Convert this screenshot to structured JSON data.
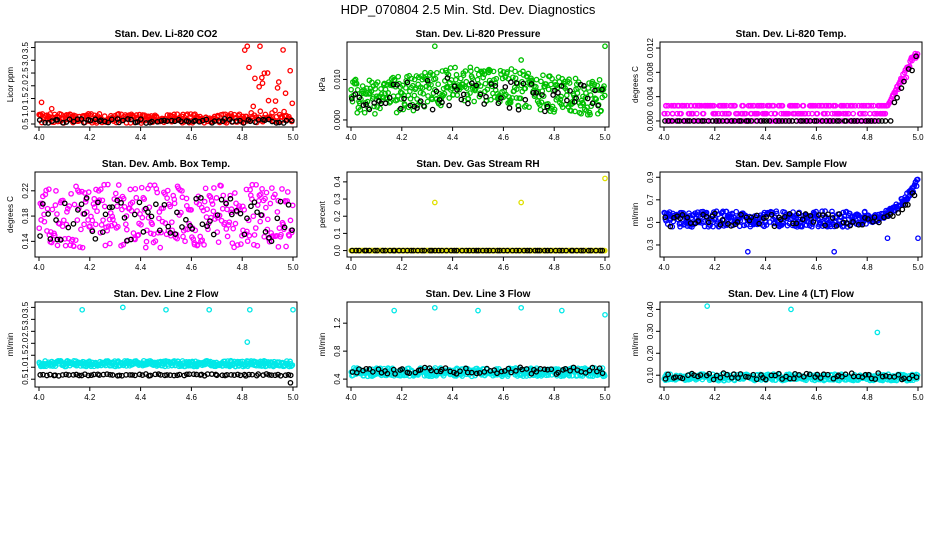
{
  "figure_title": "HDP_070804  2.5 Min. Std. Dev. Diagnostics",
  "chart_data": [
    {
      "type": "scatter",
      "title": "Stan. Dev. Li-820 CO2",
      "ylabel": "Licor ppm",
      "xlim": [
        4.0,
        5.0
      ],
      "ylim": [
        0.5,
        3.6
      ],
      "xticks": [
        "4.0",
        "4.2",
        "4.4",
        "4.6",
        "4.8",
        "5.0"
      ],
      "yticks": [
        "0.5",
        "1.0",
        "1.5",
        "2.0",
        "2.5",
        "3.0",
        "3.5"
      ],
      "series": [
        {
          "name": "red",
          "color": "#ff0000",
          "n": 300,
          "base": 0.72,
          "spread": 0.18,
          "spike_after": 4.8,
          "spike_max": 3.55,
          "outliers": [
            [
              4.01,
              1.35
            ],
            [
              4.05,
              1.1
            ],
            [
              4.81,
              3.4
            ],
            [
              4.82,
              3.55
            ],
            [
              4.87,
              3.55
            ],
            [
              4.9,
              2.5
            ],
            [
              4.88,
              2.1
            ]
          ]
        },
        {
          "name": "black",
          "color": "#000000",
          "n": 70,
          "base": 0.62,
          "spread": 0.08
        }
      ]
    },
    {
      "type": "scatter",
      "title": "Stan. Dev. Li-820 Pressure",
      "ylabel": "kPa",
      "xlim": [
        4.0,
        5.0
      ],
      "ylim": [
        -0.001,
        0.0185
      ],
      "xticks": [
        "4.0",
        "4.2",
        "4.4",
        "4.6",
        "4.8",
        "5.0"
      ],
      "yticks": [
        "0.000",
        "0.010"
      ],
      "series": [
        {
          "name": "green",
          "color": "#00c000",
          "n": 420,
          "base": 0.0055,
          "spread": 0.0045,
          "hump": 0.0035,
          "outliers": [
            [
              4.33,
              0.0182
            ],
            [
              4.67,
              0.0148
            ],
            [
              5.0,
              0.0182
            ]
          ]
        },
        {
          "name": "black",
          "color": "#000000",
          "n": 70,
          "base": 0.005,
          "spread": 0.004,
          "hump": 0.002
        }
      ]
    },
    {
      "type": "scatter",
      "title": "Stan. Dev. Li-820 Temp.",
      "ylabel": "degrees C",
      "xlim": [
        4.0,
        5.0
      ],
      "ylim": [
        -0.0005,
        0.0125
      ],
      "xticks": [
        "4.0",
        "4.2",
        "4.4",
        "4.6",
        "4.8",
        "5.0"
      ],
      "yticks": [
        "0.000",
        "0.004",
        "0.008",
        "0.012"
      ],
      "series": [
        {
          "name": "magenta",
          "color": "#ff00ff",
          "n": 380,
          "levels": [
            0.0,
            0.0012,
            0.0025
          ],
          "rise_after": 4.88,
          "rise_max": 0.0122
        },
        {
          "name": "black",
          "color": "#000000",
          "n": 70,
          "levels": [
            0.0
          ],
          "rise_after": 4.9,
          "rise_max": 0.0122
        }
      ]
    },
    {
      "type": "scatter",
      "title": "Stan. Dev. Amb. Box Temp.",
      "ylabel": "degrees C",
      "xlim": [
        4.0,
        5.0
      ],
      "ylim": [
        0.12,
        0.245
      ],
      "xticks": [
        "4.0",
        "4.2",
        "4.4",
        "4.6",
        "4.8",
        "5.0"
      ],
      "yticks": [
        "0.14",
        "0.18",
        "0.22"
      ],
      "series": [
        {
          "name": "magenta",
          "color": "#ff00ff",
          "n": 330,
          "base": 0.18,
          "spread": 0.05
        },
        {
          "name": "black",
          "color": "#000000",
          "n": 70,
          "base": 0.175,
          "spread": 0.035
        }
      ]
    },
    {
      "type": "scatter",
      "title": "Stan. Dev. Gas Stream RH",
      "ylabel": "percent",
      "xlim": [
        4.0,
        5.0
      ],
      "ylim": [
        -0.02,
        0.44
      ],
      "xticks": [
        "4.0",
        "4.2",
        "4.4",
        "4.6",
        "4.8",
        "5.0"
      ],
      "yticks": [
        "0.0",
        "0.1",
        "0.2",
        "0.3",
        "0.4"
      ],
      "series": [
        {
          "name": "yellow",
          "color": "#e0e000",
          "n": 300,
          "base": 0.0,
          "spread": 0.0,
          "outliers": [
            [
              4.33,
              0.28
            ],
            [
              4.67,
              0.28
            ],
            [
              5.0,
              0.42
            ]
          ]
        },
        {
          "name": "black",
          "color": "#000000",
          "n": 70,
          "base": 0.0,
          "spread": 0.0
        }
      ]
    },
    {
      "type": "scatter",
      "title": "Stan. Dev. Sample Flow",
      "ylabel": "ml/min",
      "xlim": [
        4.0,
        5.0
      ],
      "ylim": [
        0.22,
        0.92
      ],
      "xticks": [
        "4.0",
        "4.2",
        "4.4",
        "4.6",
        "4.8",
        "5.0"
      ],
      "yticks": [
        "0.3",
        "0.5",
        "0.7",
        "0.9"
      ],
      "series": [
        {
          "name": "blue",
          "color": "#0000ff",
          "n": 420,
          "base": 0.53,
          "spread": 0.07,
          "rise_after": 4.8,
          "rise_max": 0.86,
          "outliers": [
            [
              4.33,
              0.24
            ],
            [
              4.67,
              0.24
            ],
            [
              4.88,
              0.36
            ],
            [
              5.0,
              0.36
            ]
          ]
        },
        {
          "name": "black",
          "color": "#000000",
          "n": 70,
          "base": 0.52,
          "spread": 0.06,
          "rise_after": 4.85,
          "rise_max": 0.82
        }
      ]
    },
    {
      "type": "scatter",
      "title": "Stan. Dev. Line 2 Flow",
      "ylabel": "ml/min",
      "xlim": [
        4.0,
        5.0
      ],
      "ylim": [
        0.3,
        3.6
      ],
      "xticks": [
        "4.0",
        "4.2",
        "4.4",
        "4.6",
        "4.8",
        "5.0"
      ],
      "yticks": [
        "0.5",
        "1.0",
        "1.5",
        "2.0",
        "2.5",
        "3.0",
        "3.5"
      ],
      "series": [
        {
          "name": "cyan",
          "color": "#00e8e8",
          "n": 380,
          "base": 1.15,
          "spread": 0.12,
          "outliers": [
            [
              4.17,
              3.4
            ],
            [
              4.33,
              3.5
            ],
            [
              4.5,
              3.4
            ],
            [
              4.67,
              3.4
            ],
            [
              4.83,
              3.4
            ],
            [
              5.0,
              3.4
            ],
            [
              4.82,
              2.05
            ]
          ]
        },
        {
          "name": "black",
          "color": "#000000",
          "n": 80,
          "base": 0.68,
          "spread": 0.04,
          "outliers": [
            [
              4.99,
              0.35
            ]
          ]
        }
      ]
    },
    {
      "type": "scatter",
      "title": "Stan. Dev. Line 3 Flow",
      "ylabel": "ml/min",
      "xlim": [
        4.0,
        5.0
      ],
      "ylim": [
        0.33,
        1.46
      ],
      "xticks": [
        "4.0",
        "4.2",
        "4.4",
        "4.6",
        "4.8",
        "5.0"
      ],
      "yticks": [
        "0.4",
        "0.8",
        "1.2"
      ],
      "series": [
        {
          "name": "cyan",
          "color": "#00e8e8",
          "n": 380,
          "base": 0.5,
          "spread": 0.06,
          "outliers": [
            [
              4.17,
              1.38
            ],
            [
              4.33,
              1.42
            ],
            [
              4.5,
              1.38
            ],
            [
              4.67,
              1.42
            ],
            [
              4.83,
              1.38
            ],
            [
              5.0,
              1.32
            ]
          ]
        },
        {
          "name": "black",
          "color": "#000000",
          "n": 70,
          "base": 0.52,
          "spread": 0.05
        }
      ]
    },
    {
      "type": "scatter",
      "title": "Stan. Dev. Line 4 (LT) Flow",
      "ylabel": "ml/min",
      "xlim": [
        4.0,
        5.0
      ],
      "ylim": [
        0.06,
        0.42
      ],
      "xticks": [
        "4.0",
        "4.2",
        "4.4",
        "4.6",
        "4.8",
        "5.0"
      ],
      "yticks": [
        "0.10",
        "0.20",
        "0.30",
        "0.40"
      ],
      "series": [
        {
          "name": "cyan",
          "color": "#00e8e8",
          "n": 380,
          "base": 0.09,
          "spread": 0.015,
          "outliers": [
            [
              4.17,
              0.415
            ],
            [
              4.5,
              0.4
            ],
            [
              4.84,
              0.295
            ]
          ]
        },
        {
          "name": "black",
          "color": "#000000",
          "n": 70,
          "base": 0.095,
          "spread": 0.015
        }
      ]
    }
  ]
}
